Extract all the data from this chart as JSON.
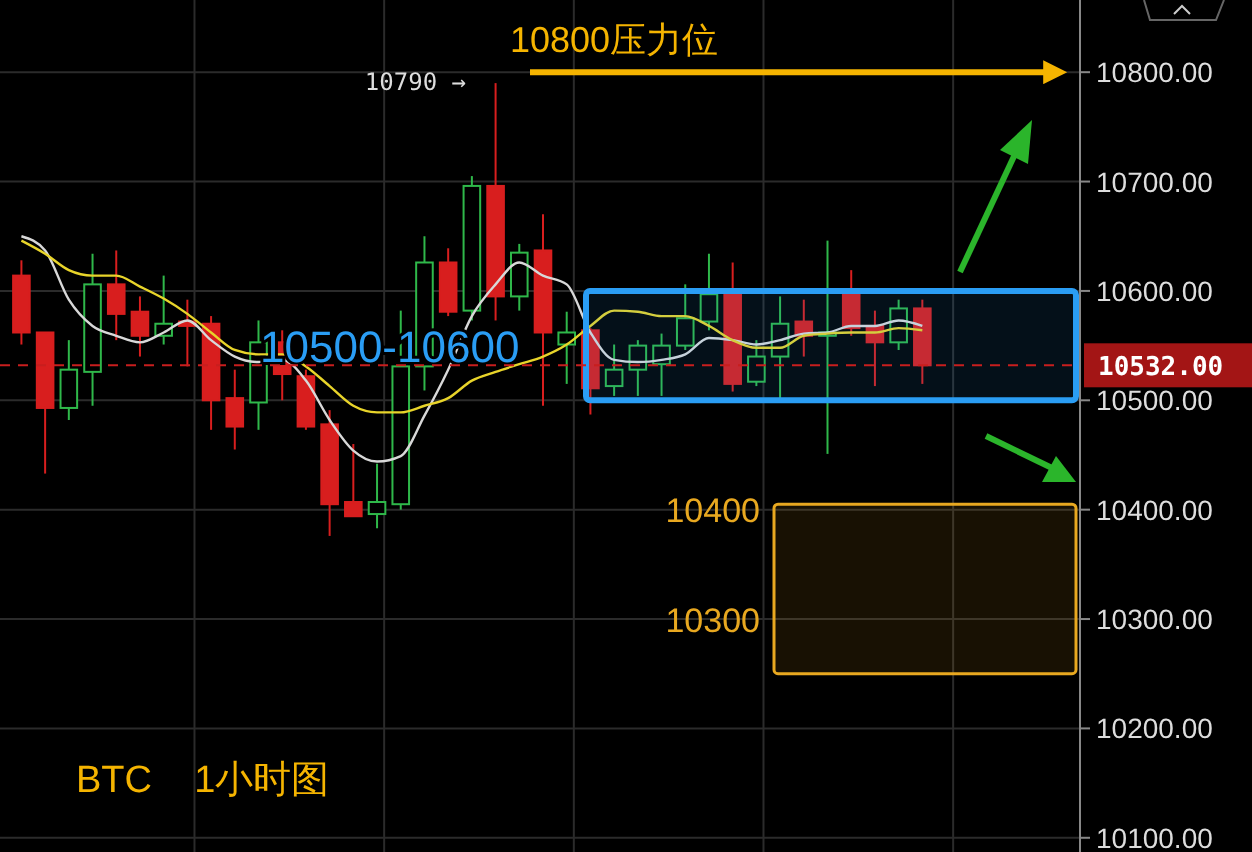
{
  "chart_data": {
    "type": "candlestick",
    "title": "BTC    1小时图",
    "categories": [
      null,
      null,
      null,
      null,
      null,
      null,
      null,
      null,
      null,
      null,
      null,
      null,
      null,
      null,
      null,
      null,
      null,
      null,
      null,
      null,
      null,
      null,
      null,
      null,
      null,
      null,
      null,
      null,
      null,
      null,
      null,
      null,
      null,
      null,
      null,
      null,
      null,
      null,
      null,
      null,
      null,
      null,
      null,
      null,
      null
    ],
    "ohlc": [
      [
        10614,
        10628,
        10551,
        10562
      ],
      [
        10562,
        10562,
        10433,
        10493
      ],
      [
        10493,
        10555,
        10482,
        10528
      ],
      [
        10526,
        10634,
        10495,
        10606
      ],
      [
        10606,
        10637,
        10555,
        10579
      ],
      [
        10581,
        10595,
        10540,
        10559
      ],
      [
        10559,
        10614,
        10551,
        10570
      ],
      [
        10572,
        10592,
        10531,
        10568
      ],
      [
        10570,
        10577,
        10473,
        10500
      ],
      [
        10502,
        10528,
        10455,
        10476
      ],
      [
        10498,
        10573,
        10473,
        10553
      ],
      [
        10553,
        10564,
        10500,
        10524
      ],
      [
        10522,
        10528,
        10473,
        10476
      ],
      [
        10478,
        10491,
        10376,
        10405
      ],
      [
        10407,
        10460,
        10394,
        10394
      ],
      [
        10396,
        10442,
        10383,
        10407
      ],
      [
        10405,
        10582,
        10400,
        10531
      ],
      [
        10531,
        10650,
        10509,
        10626
      ],
      [
        10626,
        10639,
        10577,
        10581
      ],
      [
        10582,
        10705,
        10573,
        10696
      ],
      [
        10696,
        10790,
        10573,
        10595
      ],
      [
        10595,
        10643,
        10582,
        10635
      ],
      [
        10637,
        10670,
        10495,
        10562
      ],
      [
        10551,
        10581,
        10515,
        10562
      ],
      [
        10564,
        10566,
        10487,
        10511
      ],
      [
        10513,
        10551,
        10504,
        10528
      ],
      [
        10528,
        10555,
        10504,
        10550
      ],
      [
        10533,
        10561,
        10504,
        10550
      ],
      [
        10550,
        10606,
        10546,
        10575
      ],
      [
        10572,
        10634,
        10564,
        10597
      ],
      [
        10597,
        10626,
        10508,
        10515
      ],
      [
        10517,
        10555,
        10513,
        10540
      ],
      [
        10540,
        10595,
        10500,
        10570
      ],
      [
        10572,
        10592,
        10540,
        10559
      ],
      [
        10559,
        10646,
        10451,
        10562
      ],
      [
        10597,
        10619,
        10559,
        10566
      ],
      [
        10568,
        10582,
        10513,
        10553
      ],
      [
        10553,
        10592,
        10546,
        10584
      ],
      [
        10584,
        10592,
        10515,
        10532
      ],
      null,
      null,
      null,
      null,
      null,
      null
    ],
    "colors": [
      "#d81e1e",
      "#d81e1e",
      "#2fb84a",
      "#2fb84a",
      "#d81e1e",
      "#d81e1e",
      "#2fb84a",
      "#d81e1e",
      "#d81e1e",
      "#d81e1e",
      "#2fb84a",
      "#d81e1e",
      "#d81e1e",
      "#d81e1e",
      "#d81e1e",
      "#2fb84a",
      "#2fb84a",
      "#2fb84a",
      "#d81e1e",
      "#2fb84a",
      "#d81e1e",
      "#2fb84a",
      "#d81e1e",
      "#2fb84a",
      "#d81e1e",
      "#2fb84a",
      "#2fb84a",
      "#2fb84a",
      "#2fb84a",
      "#2fb84a",
      "#d81e1e",
      "#2fb84a",
      "#2fb84a",
      "#d81e1e",
      "#2fb84a",
      "#d81e1e",
      "#d81e1e",
      "#2fb84a",
      "#d81e1e",
      null,
      null,
      null,
      null,
      null,
      null
    ],
    "series": [
      {
        "type": "line",
        "color": "#d8d8d8",
        "values": [
          10650,
          10637,
          10592,
          10568,
          10559,
          10553,
          10562,
          10573,
          10555,
          10540,
          10535,
          10537,
          10518,
          10482,
          10454,
          10444,
          10449,
          10486,
          10528,
          10577,
          10606,
          10626,
          10614,
          10606,
          10562,
          10537,
          10535,
          10537,
          10542,
          10557,
          10555,
          10551,
          10555,
          10561,
          10562,
          10568,
          10568,
          10573,
          10568,
          null,
          null,
          null,
          null,
          null,
          null
        ]
      },
      {
        "type": "line",
        "color": "#e8d42a",
        "values": [
          10646,
          10634,
          10619,
          10614,
          10614,
          10604,
          10593,
          10579,
          10562,
          10546,
          10542,
          10542,
          10531,
          10513,
          10495,
          10489,
          10489,
          10495,
          10502,
          10518,
          10526,
          10533,
          10540,
          10551,
          10568,
          10582,
          10581,
          10577,
          10577,
          10568,
          10555,
          10548,
          10548,
          10559,
          10561,
          10562,
          10562,
          10566,
          10564,
          null,
          null,
          null,
          null,
          null,
          null
        ]
      }
    ],
    "ylim": [
      10087,
      10866
    ],
    "yticks": [
      {
        "value": 10100,
        "label": "10100.00"
      },
      {
        "value": 10200,
        "label": "10200.00"
      },
      {
        "value": 10300,
        "label": "10300.00"
      },
      {
        "value": 10400,
        "label": "10400.00"
      },
      {
        "value": 10500,
        "label": "10500.00"
      },
      {
        "value": 10600,
        "label": "10600.00"
      },
      {
        "value": 10700,
        "label": "10700.00"
      },
      {
        "value": 10800,
        "label": "10800.00"
      }
    ],
    "grid": true,
    "ref_lines": [
      {
        "axis": "y",
        "value": 10800,
        "label": "10800压力位",
        "color": "#f5b400"
      },
      {
        "axis": "y",
        "value": 10532,
        "label": "10532.00",
        "color": "#c81e1e",
        "line_style": "dashed"
      }
    ],
    "bands": [
      {
        "axis": "y",
        "from": 10500,
        "to": 10600,
        "label": "10500-10600",
        "color": "#2a9df4"
      },
      {
        "axis": "y",
        "from": 10250,
        "to": 10405,
        "label": null,
        "color": "#e8a820"
      }
    ],
    "annotations": [
      "10790 →",
      "10400",
      "10300"
    ]
  }
}
